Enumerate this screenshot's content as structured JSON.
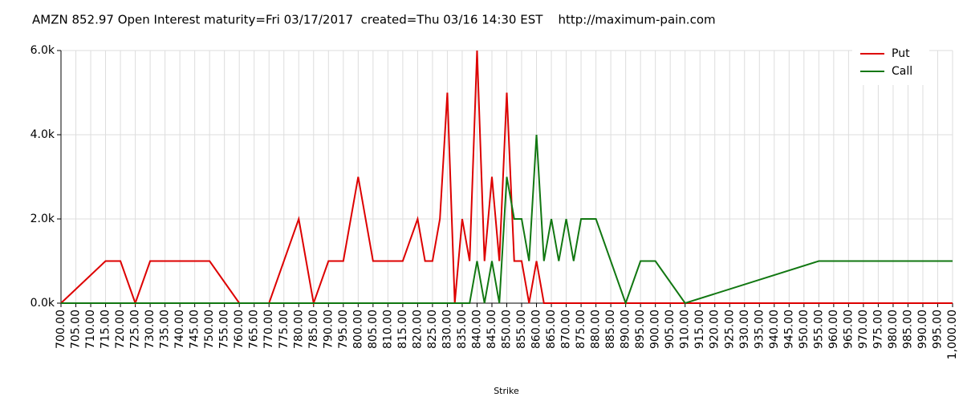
{
  "chart_data": {
    "type": "line",
    "title": "AMZN 852.97 Open Interest maturity=Fri 03/17/2017  created=Thu 03/16 14:30 EST    http://maximum-pain.com",
    "x_label": "Strike",
    "x": [
      700,
      715,
      720,
      725,
      730,
      750,
      760,
      770,
      780,
      785,
      790,
      795,
      800,
      805,
      815,
      820,
      822.5,
      825,
      827.5,
      830,
      832.5,
      835,
      837.5,
      840,
      842.5,
      845,
      847.5,
      850,
      852.5,
      855,
      857.5,
      860,
      862.5,
      865,
      867.5,
      870,
      872.5,
      875,
      880,
      890,
      895,
      900,
      910,
      955,
      1000
    ],
    "series": [
      {
        "name": "Put",
        "color": "#dd0000",
        "values": [
          0,
          1000,
          1000,
          0,
          1000,
          1000,
          0,
          0,
          2000,
          0,
          1000,
          1000,
          3000,
          1000,
          1000,
          2000,
          1000,
          1000,
          2000,
          5000,
          0,
          2000,
          1000,
          6000,
          1000,
          3000,
          1000,
          5000,
          1000,
          1000,
          0,
          1000,
          0,
          0,
          0,
          0,
          0,
          0,
          0,
          0,
          0,
          0,
          0,
          0,
          0
        ]
      },
      {
        "name": "Call",
        "color": "#117711",
        "values": [
          0,
          0,
          0,
          0,
          0,
          0,
          0,
          0,
          0,
          0,
          0,
          0,
          0,
          0,
          0,
          0,
          0,
          0,
          0,
          0,
          0,
          0,
          0,
          1000,
          0,
          1000,
          0,
          3000,
          2000,
          2000,
          1000,
          4000,
          1000,
          2000,
          1000,
          2000,
          1000,
          2000,
          2000,
          0,
          1000,
          1000,
          0,
          1000,
          1000
        ]
      }
    ],
    "xlim": [
      700,
      1000
    ],
    "xticks": [
      {
        "value": 700,
        "label": "700.00"
      },
      {
        "value": 705,
        "label": "705.00"
      },
      {
        "value": 710,
        "label": "710.00"
      },
      {
        "value": 715,
        "label": "715.00"
      },
      {
        "value": 720,
        "label": "720.00"
      },
      {
        "value": 725,
        "label": "725.00"
      },
      {
        "value": 730,
        "label": "730.00"
      },
      {
        "value": 735,
        "label": "735.00"
      },
      {
        "value": 740,
        "label": "740.00"
      },
      {
        "value": 745,
        "label": "745.00"
      },
      {
        "value": 750,
        "label": "750.00"
      },
      {
        "value": 755,
        "label": "755.00"
      },
      {
        "value": 760,
        "label": "760.00"
      },
      {
        "value": 765,
        "label": "765.00"
      },
      {
        "value": 770,
        "label": "770.00"
      },
      {
        "value": 775,
        "label": "775.00"
      },
      {
        "value": 780,
        "label": "780.00"
      },
      {
        "value": 785,
        "label": "785.00"
      },
      {
        "value": 790,
        "label": "790.00"
      },
      {
        "value": 795,
        "label": "795.00"
      },
      {
        "value": 800,
        "label": "800.00"
      },
      {
        "value": 805,
        "label": "805.00"
      },
      {
        "value": 810,
        "label": "810.00"
      },
      {
        "value": 815,
        "label": "815.00"
      },
      {
        "value": 820,
        "label": "820.00"
      },
      {
        "value": 825,
        "label": "825.00"
      },
      {
        "value": 830,
        "label": "830.00"
      },
      {
        "value": 835,
        "label": "835.00"
      },
      {
        "value": 840,
        "label": "840.00"
      },
      {
        "value": 845,
        "label": "845.00"
      },
      {
        "value": 850,
        "label": "850.00"
      },
      {
        "value": 855,
        "label": "855.00"
      },
      {
        "value": 860,
        "label": "860.00"
      },
      {
        "value": 865,
        "label": "865.00"
      },
      {
        "value": 870,
        "label": "870.00"
      },
      {
        "value": 875,
        "label": "875.00"
      },
      {
        "value": 880,
        "label": "880.00"
      },
      {
        "value": 885,
        "label": "885.00"
      },
      {
        "value": 890,
        "label": "890.00"
      },
      {
        "value": 895,
        "label": "895.00"
      },
      {
        "value": 900,
        "label": "900.00"
      },
      {
        "value": 905,
        "label": "905.00"
      },
      {
        "value": 910,
        "label": "910.00"
      },
      {
        "value": 915,
        "label": "915.00"
      },
      {
        "value": 920,
        "label": "920.00"
      },
      {
        "value": 925,
        "label": "925.00"
      },
      {
        "value": 930,
        "label": "930.00"
      },
      {
        "value": 935,
        "label": "935.00"
      },
      {
        "value": 940,
        "label": "940.00"
      },
      {
        "value": 945,
        "label": "945.00"
      },
      {
        "value": 950,
        "label": "950.00"
      },
      {
        "value": 955,
        "label": "955.00"
      },
      {
        "value": 960,
        "label": "960.00"
      },
      {
        "value": 965,
        "label": "965.00"
      },
      {
        "value": 970,
        "label": "970.00"
      },
      {
        "value": 975,
        "label": "975.00"
      },
      {
        "value": 980,
        "label": "980.00"
      },
      {
        "value": 985,
        "label": "985.00"
      },
      {
        "value": 990,
        "label": "990.00"
      },
      {
        "value": 995,
        "label": "995.00"
      },
      {
        "value": 1000,
        "label": "1,000.00"
      }
    ],
    "ylim": [
      0,
      6000
    ],
    "yticks": [
      {
        "value": 0,
        "label": "0.0k"
      },
      {
        "value": 2000,
        "label": "2.0k"
      },
      {
        "value": 4000,
        "label": "4.0k"
      },
      {
        "value": 6000,
        "label": "6.0k"
      }
    ],
    "grid": true,
    "legend": "top-right"
  }
}
